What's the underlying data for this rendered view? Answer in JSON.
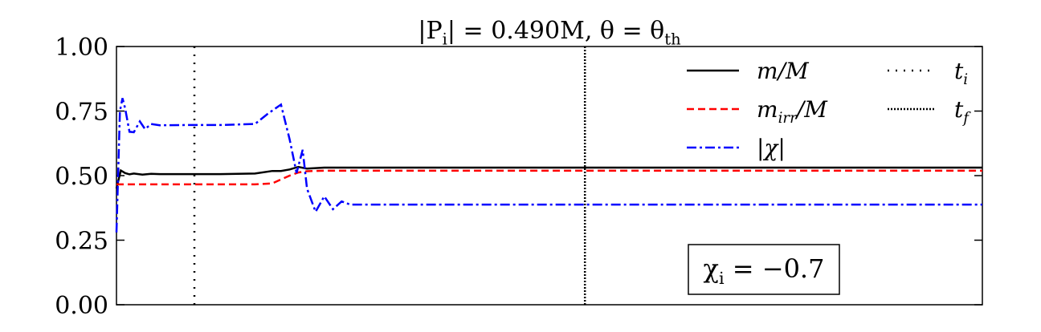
{
  "chart_data": {
    "type": "line",
    "title": [
      "|P",
      "i",
      "| = 0.490M, θ = θ",
      "th"
    ],
    "xlim": [
      0,
      100
    ],
    "ylim": [
      0,
      1
    ],
    "yticks": [
      {
        "value": 0,
        "label": "0.00"
      },
      {
        "value": 0.25,
        "label": "0.25"
      },
      {
        "value": 0.5,
        "label": "0.50"
      },
      {
        "value": 0.75,
        "label": "0.75"
      },
      {
        "value": 1,
        "label": "1.00"
      }
    ],
    "series": [
      {
        "name": "m/M",
        "color": "#000000",
        "dash": "solid",
        "x": [
          0,
          0.5,
          1,
          1.5,
          2,
          3,
          4,
          5,
          8,
          12,
          16,
          18,
          19,
          20,
          21,
          22,
          24,
          26,
          100
        ],
        "values": [
          0.45,
          0.52,
          0.51,
          0.505,
          0.508,
          0.504,
          0.507,
          0.506,
          0.506,
          0.506,
          0.508,
          0.518,
          0.518,
          0.524,
          0.534,
          0.527,
          0.531,
          0.531,
          0.531
        ]
      },
      {
        "name": [
          "m",
          "irr",
          "/M"
        ],
        "color": "#ff0000",
        "dash": "dashed",
        "x": [
          0,
          16,
          18,
          19,
          20,
          21,
          22,
          24,
          100
        ],
        "values": [
          0.466,
          0.466,
          0.47,
          0.485,
          0.5,
          0.512,
          0.517,
          0.519,
          0.519
        ]
      },
      {
        "name": "|χ|",
        "color": "#0000ff",
        "dash": "dashdot",
        "x": [
          0,
          0.4,
          0.7,
          1,
          1.5,
          2,
          2.7,
          3.3,
          4,
          5,
          8,
          12,
          16,
          17.5,
          19,
          20,
          20.8,
          21.5,
          22,
          23,
          24,
          25,
          26,
          27,
          100
        ],
        "values": [
          0.28,
          0.75,
          0.8,
          0.76,
          0.67,
          0.668,
          0.71,
          0.68,
          0.7,
          0.695,
          0.696,
          0.696,
          0.7,
          0.74,
          0.775,
          0.64,
          0.51,
          0.6,
          0.45,
          0.36,
          0.42,
          0.37,
          0.4,
          0.388,
          0.388
        ]
      }
    ],
    "vlines": [
      {
        "name": [
          "t",
          "i"
        ],
        "x": 9,
        "dash": "dotted"
      },
      {
        "name": [
          "t",
          "f"
        ],
        "x": 54.1,
        "dash": "densely-dotted"
      }
    ],
    "annotation": [
      "χ",
      "i",
      " = −0.7"
    ]
  }
}
